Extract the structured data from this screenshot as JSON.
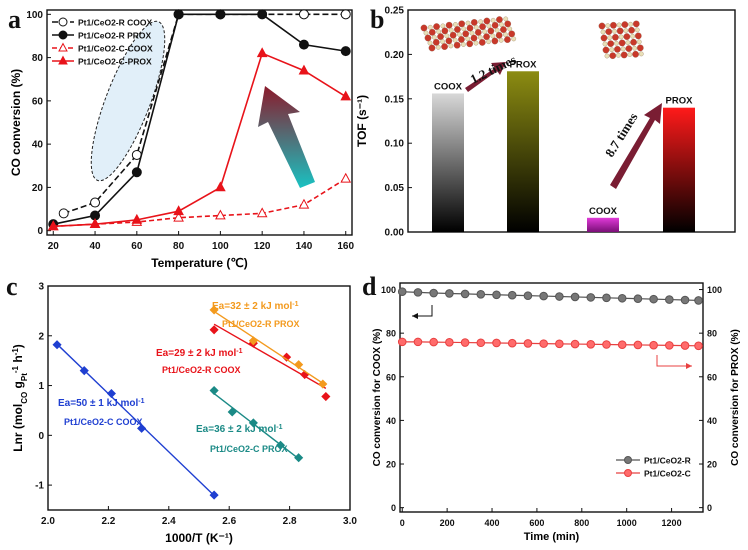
{
  "colors": {
    "black": "#111111",
    "red": "#e8131a",
    "orange": "#f39a1e",
    "blue": "#1f3fd1",
    "teal": "#1b8a86",
    "magenta": "#d21fd1",
    "gray_series": "#555555",
    "red_series": "#e84040",
    "olive": "#8a8a0a",
    "arrow": "#7a1d33"
  },
  "chart_data": [
    {
      "panel": "a",
      "type": "line",
      "xlabel": "Temperature (℃)",
      "ylabel": "CO conversion (%)",
      "xlim": [
        17,
        163
      ],
      "ylim": [
        -2,
        102
      ],
      "xticks": [
        "20",
        "40",
        "60",
        "80",
        "100",
        "120",
        "140",
        "160"
      ],
      "yticks": [
        "0",
        "20",
        "40",
        "60",
        "80",
        "100"
      ],
      "legend": [
        "Pt1/CeO2-R COOX",
        "Pt1/CeO2-R PROX",
        "Pt1/CeO2-C-COOX",
        "Pt1/CeO2-C-PROX"
      ],
      "series": [
        {
          "name": "Pt1/CeO2-R COOX",
          "x": [
            25,
            40,
            60,
            80,
            100,
            140,
            160
          ],
          "y": [
            8,
            13,
            35,
            100,
            100,
            100,
            100
          ]
        },
        {
          "name": "Pt1/CeO2-R PROX",
          "x": [
            20,
            40,
            60,
            80,
            100,
            120,
            140,
            160
          ],
          "y": [
            3,
            7,
            27,
            100,
            100,
            100,
            86,
            83
          ]
        },
        {
          "name": "Pt1/CeO2-C-COOX",
          "x": [
            20,
            40,
            60,
            80,
            100,
            120,
            140,
            160
          ],
          "y": [
            2,
            3,
            4,
            6,
            7,
            8,
            12,
            24
          ]
        },
        {
          "name": "Pt1/CeO2-C-PROX",
          "x": [
            20,
            40,
            60,
            80,
            100,
            120,
            140,
            160
          ],
          "y": [
            2,
            3,
            5,
            9,
            20,
            82,
            74,
            62
          ]
        }
      ]
    },
    {
      "panel": "b",
      "type": "bar",
      "ylabel": "TOF (s⁻¹)",
      "ylim": [
        0,
        0.25
      ],
      "yticks": [
        "0.00",
        "0.05",
        "0.10",
        "0.15",
        "0.20",
        "0.25"
      ],
      "categories": [
        "COOX",
        "PROX",
        "COOX",
        "PROX"
      ],
      "values": [
        0.156,
        0.181,
        0.016,
        0.14
      ],
      "annotations": [
        "1.2 times",
        "8.7 times"
      ]
    },
    {
      "panel": "c",
      "type": "scatter",
      "xlabel": "1000/T (K⁻¹)",
      "ylabel": "Lnr (mol",
      "ylabel_sub": "CO",
      "ylabel_mid": " g",
      "ylabel_sub2": "Pt",
      "ylabel_sup": "-1",
      "ylabel_end": " h",
      "ylabel_sup2": "-1",
      "ylabel_close": ")",
      "xlim": [
        2.0,
        3.0
      ],
      "ylim": [
        -1.5,
        3.0
      ],
      "xticks": [
        "2.0",
        "2.2",
        "2.4",
        "2.6",
        "2.8",
        "3.0"
      ],
      "yticks": [
        "-1",
        "0",
        "1",
        "2",
        "3"
      ],
      "series": [
        {
          "name": "Pt1/CeO2-C  COOX",
          "ea": "Ea=50 ± 1 kJ mol",
          "x": [
            2.03,
            2.12,
            2.21,
            2.31,
            2.55
          ],
          "y": [
            1.82,
            1.3,
            0.84,
            0.14,
            -1.2
          ]
        },
        {
          "name": "Pt1/CeO2-R  COOX",
          "ea": "Ea=29 ± 2 kJ mol",
          "x": [
            2.55,
            2.68,
            2.79,
            2.85,
            2.92
          ],
          "y": [
            2.12,
            1.85,
            1.57,
            1.22,
            0.78
          ]
        },
        {
          "name": "Pt1/CeO2-R  PROX",
          "ea": "Ea=32 ± 2 kJ mol",
          "x": [
            2.55,
            2.68,
            2.83,
            2.91
          ],
          "y": [
            2.52,
            1.9,
            1.42,
            1.03
          ]
        },
        {
          "name": "Pt1/CeO2-C  PROX",
          "ea": "Ea=36 ± 2 kJ mol",
          "x": [
            2.55,
            2.61,
            2.68,
            2.77,
            2.83
          ],
          "y": [
            0.9,
            0.47,
            0.25,
            -0.2,
            -0.45
          ]
        }
      ]
    },
    {
      "panel": "d",
      "type": "line",
      "xlabel": "Time (min)",
      "ylabel_left": "CO conversion for COOX (%)",
      "ylabel_right": "CO conversion for PROX (%)",
      "xlim": [
        -10,
        1340
      ],
      "ylim": [
        -2,
        103
      ],
      "xticks": [
        "0",
        "200",
        "400",
        "600",
        "800",
        "1000",
        "1200"
      ],
      "yticks": [
        "0",
        "20",
        "40",
        "60",
        "80",
        "100"
      ],
      "legend": [
        "Pt1/CeO2-R",
        "Pt1/CeO2-C"
      ],
      "series": [
        {
          "name": "Pt1/CeO2-R",
          "x": [
            0,
            70,
            140,
            210,
            280,
            350,
            420,
            490,
            560,
            630,
            700,
            770,
            840,
            910,
            980,
            1050,
            1120,
            1190,
            1260,
            1320
          ],
          "y": [
            99,
            98.7,
            98.4,
            98.2,
            98,
            97.8,
            97.6,
            97.4,
            97.2,
            97,
            96.8,
            96.6,
            96.4,
            96.2,
            96,
            95.8,
            95.6,
            95.4,
            95.2,
            95
          ]
        },
        {
          "name": "Pt1/CeO2-C",
          "x": [
            0,
            70,
            140,
            210,
            280,
            350,
            420,
            490,
            560,
            630,
            700,
            770,
            840,
            910,
            980,
            1050,
            1120,
            1190,
            1260,
            1320
          ],
          "y": [
            76,
            76,
            75.9,
            75.8,
            75.7,
            75.6,
            75.5,
            75.4,
            75.3,
            75.2,
            75.1,
            75,
            74.9,
            74.8,
            74.7,
            74.6,
            74.5,
            74.4,
            74.3,
            74.2
          ]
        }
      ]
    }
  ],
  "panel_labels": [
    "a",
    "b",
    "c",
    "d"
  ]
}
